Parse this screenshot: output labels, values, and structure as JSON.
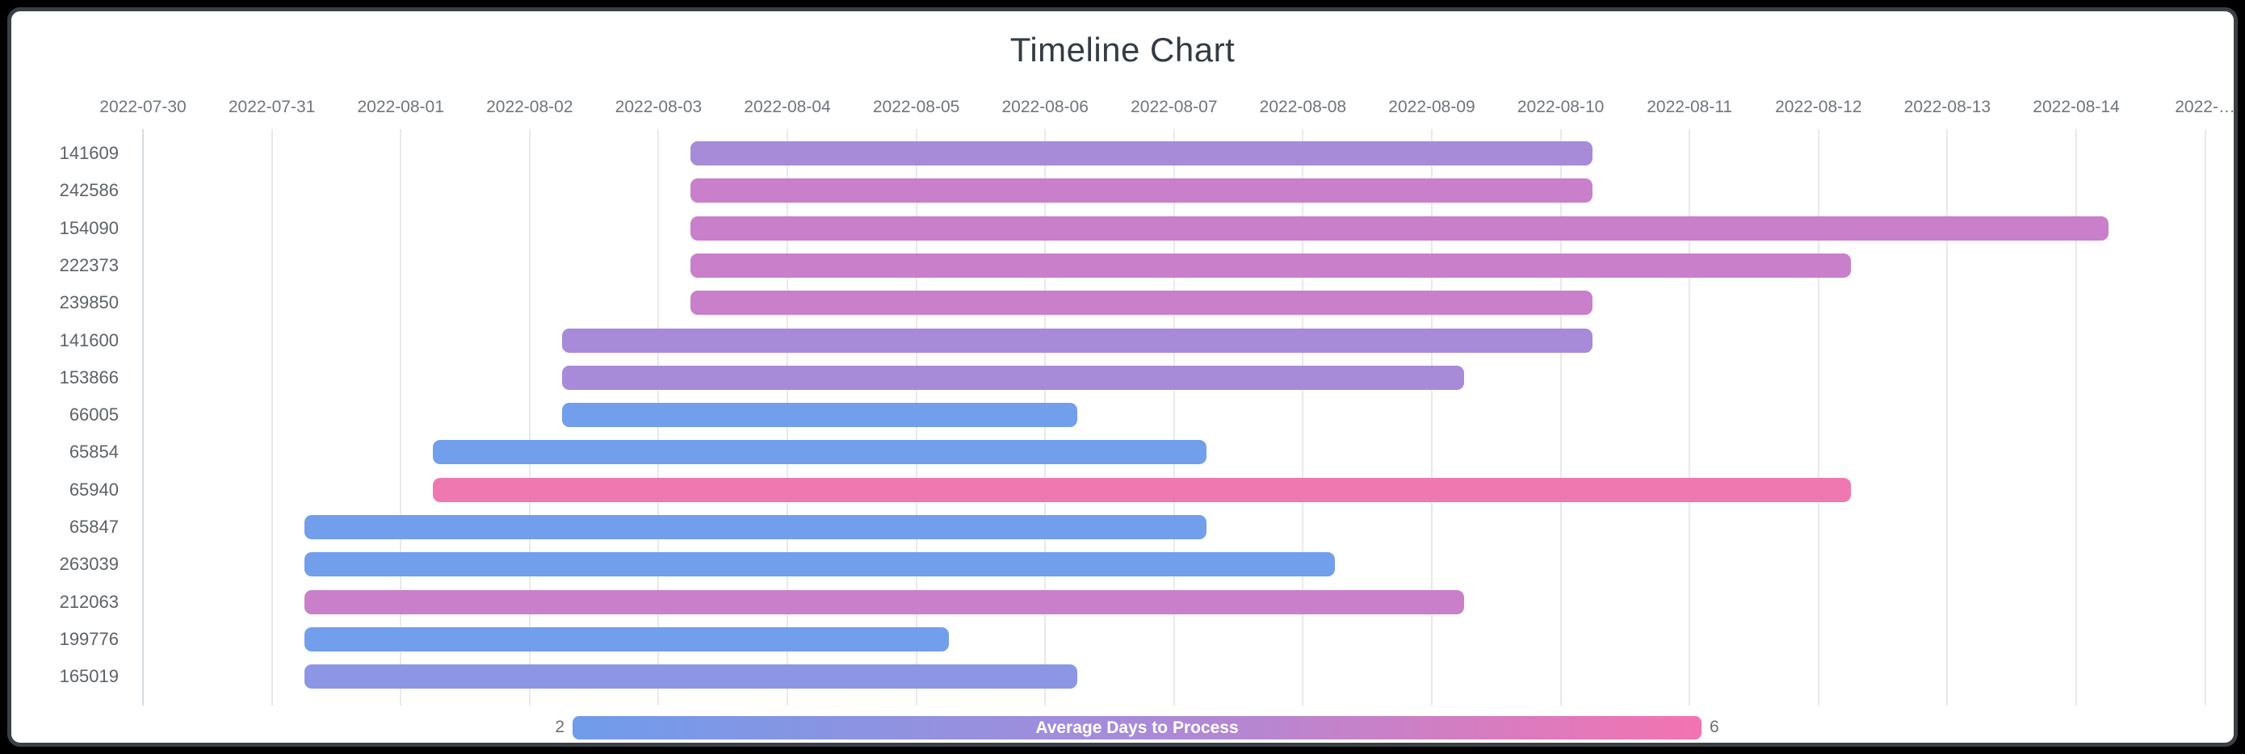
{
  "window": {
    "frame_color": "#000000",
    "card_background": "#ffffff",
    "card_border_color": "#394046"
  },
  "chart_data": {
    "type": "timeline",
    "title": "Timeline Chart",
    "x_axis": {
      "start_date": "2022-07-30",
      "tick_labels": [
        "2022-07-30",
        "2022-07-31",
        "2022-08-01",
        "2022-08-02",
        "2022-08-03",
        "2022-08-04",
        "2022-08-05",
        "2022-08-06",
        "2022-08-07",
        "2022-08-08",
        "2022-08-09",
        "2022-08-10",
        "2022-08-11",
        "2022-08-12",
        "2022-08-13",
        "2022-08-14",
        "2022-…"
      ],
      "gridlines": true,
      "tick_color": "#70757b"
    },
    "rows": [
      {
        "id": "141609",
        "start_date": "2022-08-03",
        "end_date": "2022-08-10",
        "start_day": 4.25,
        "end_day": 11.25,
        "color": "#a78bd9"
      },
      {
        "id": "242586",
        "start_date": "2022-08-03",
        "end_date": "2022-08-10",
        "start_day": 4.25,
        "end_day": 11.25,
        "color": "#c97fca"
      },
      {
        "id": "154090",
        "start_date": "2022-08-03",
        "end_date": "2022-08-14",
        "start_day": 4.25,
        "end_day": 15.25,
        "color": "#c97fca"
      },
      {
        "id": "222373",
        "start_date": "2022-08-03",
        "end_date": "2022-08-12",
        "start_day": 4.25,
        "end_day": 13.25,
        "color": "#c97fca"
      },
      {
        "id": "239850",
        "start_date": "2022-08-03",
        "end_date": "2022-08-10",
        "start_day": 4.25,
        "end_day": 11.25,
        "color": "#c97fca"
      },
      {
        "id": "141600",
        "start_date": "2022-08-02",
        "end_date": "2022-08-10",
        "start_day": 3.25,
        "end_day": 11.25,
        "color": "#a78bd9"
      },
      {
        "id": "153866",
        "start_date": "2022-08-02",
        "end_date": "2022-08-09",
        "start_day": 3.25,
        "end_day": 10.25,
        "color": "#a78bd9"
      },
      {
        "id": "66005",
        "start_date": "2022-08-02",
        "end_date": "2022-08-06",
        "start_day": 3.25,
        "end_day": 7.25,
        "color": "#719fec"
      },
      {
        "id": "65854",
        "start_date": "2022-08-01",
        "end_date": "2022-08-07",
        "start_day": 2.25,
        "end_day": 8.25,
        "color": "#719fec"
      },
      {
        "id": "65940",
        "start_date": "2022-08-01",
        "end_date": "2022-08-12",
        "start_day": 2.25,
        "end_day": 13.25,
        "color": "#f078b1"
      },
      {
        "id": "65847",
        "start_date": "2022-07-31",
        "end_date": "2022-08-07",
        "start_day": 1.25,
        "end_day": 8.25,
        "color": "#719fec"
      },
      {
        "id": "263039",
        "start_date": "2022-07-31",
        "end_date": "2022-08-08",
        "start_day": 1.25,
        "end_day": 9.25,
        "color": "#719fec"
      },
      {
        "id": "212063",
        "start_date": "2022-07-31",
        "end_date": "2022-08-09",
        "start_day": 1.25,
        "end_day": 10.25,
        "color": "#c97fca"
      },
      {
        "id": "199776",
        "start_date": "2022-07-31",
        "end_date": "2022-08-05",
        "start_day": 1.25,
        "end_day": 6.25,
        "color": "#719fec"
      },
      {
        "id": "165019",
        "start_date": "2022-07-31",
        "end_date": "2022-08-06",
        "start_day": 1.25,
        "end_day": 7.25,
        "color": "#8c96e5"
      }
    ],
    "legend": {
      "title": "Average Days to Process",
      "min_label": "2",
      "max_label": "6",
      "gradient_colors": [
        "#6f9ceb",
        "#a78bd9",
        "#f473b1"
      ]
    }
  }
}
